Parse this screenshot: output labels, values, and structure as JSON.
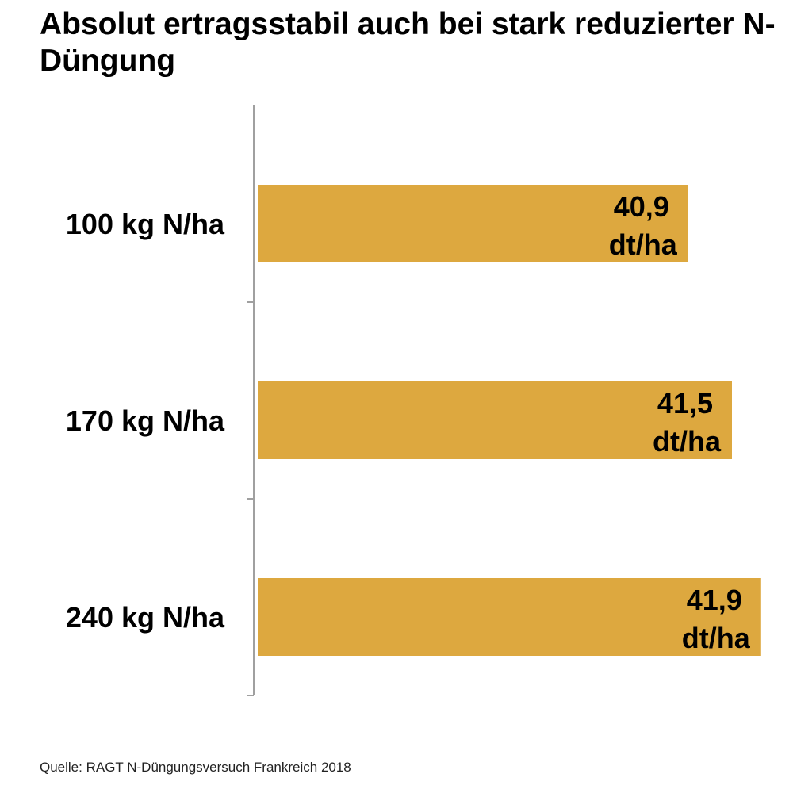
{
  "chart_data": {
    "type": "bar",
    "orientation": "horizontal",
    "title": "Absolut ertragsstabil auch bei stark reduzierter N-Düngung",
    "categories": [
      "100 kg N/ha",
      "170 kg N/ha",
      "240 kg N/ha"
    ],
    "values": [
      40.9,
      41.5,
      41.9
    ],
    "data_labels": [
      "40,9",
      "41,5",
      "41,9"
    ],
    "unit": "dt/ha",
    "xlim": [
      35,
      42
    ],
    "xlabel": "",
    "ylabel": "",
    "grid": false,
    "legend": "none",
    "bar_color": "#DDA83F",
    "source": "Quelle: RAGT N-Düngungsversuch Frankreich 2018"
  }
}
